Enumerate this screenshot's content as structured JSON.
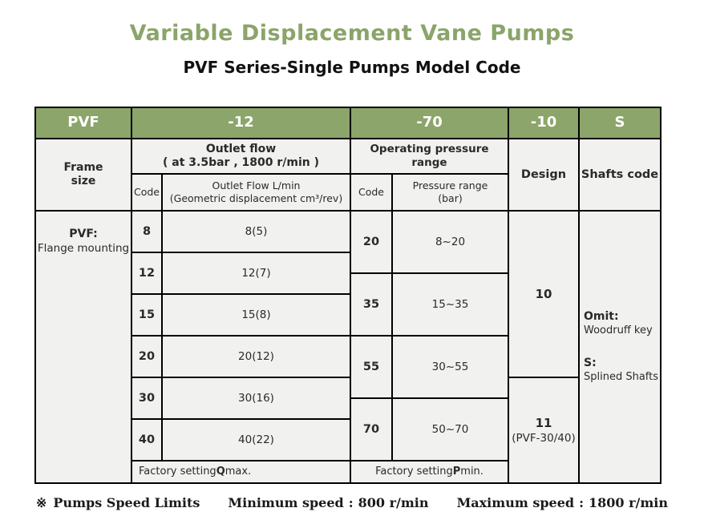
{
  "page": {
    "title": "Variable Displacement Vane Pumps",
    "subtitle": "PVF Series-Single Pumps Model Code"
  },
  "table": {
    "model_code": {
      "prefix": "PVF",
      "flow": "-12",
      "pressure": "-70",
      "design": "-10",
      "shaft": "S"
    },
    "frame": {
      "header_line1": "Frame",
      "header_line2": "size",
      "name": "PVF:",
      "desc": "Flange mounting"
    },
    "flow": {
      "title": "Outlet flow",
      "condition": "( at 3.5bar , 1800 r/min )",
      "code_header": "Code",
      "value_header_line1": "Outlet Flow L/min",
      "value_header_line2": "(Geometric displacement cm³/rev)",
      "rows": [
        {
          "code": "8",
          "value": "8(5)"
        },
        {
          "code": "12",
          "value": "12(7)"
        },
        {
          "code": "15",
          "value": "15(8)"
        },
        {
          "code": "20",
          "value": "20(12)"
        },
        {
          "code": "30",
          "value": "30(16)"
        },
        {
          "code": "40",
          "value": "40(22)"
        }
      ],
      "factory": {
        "prefix": "Factory setting ",
        "bold": "Q",
        "suffix": " max."
      }
    },
    "pressure": {
      "title": "Operating pressure range",
      "code_header": "Code",
      "value_header_line1": "Pressure range",
      "value_header_line2": "(bar)",
      "rows": [
        {
          "code": "20",
          "range": "8~20"
        },
        {
          "code": "35",
          "range": "15~35"
        },
        {
          "code": "55",
          "range": "30~55"
        },
        {
          "code": "70",
          "range": "50~70"
        }
      ],
      "factory": {
        "prefix": "Factory setting ",
        "bold": "P",
        "suffix": " min."
      }
    },
    "design": {
      "header": "Design",
      "options": [
        {
          "value": "10",
          "note": ""
        },
        {
          "value": "11",
          "note": "(PVF-30/40)"
        }
      ]
    },
    "shafts": {
      "header": "Shafts code",
      "options": [
        {
          "code": "Omit:",
          "desc": "Woodruff key"
        },
        {
          "code": "S:",
          "desc": "Splined Shafts"
        }
      ]
    }
  },
  "footer": {
    "mark": "※",
    "title": "Pumps Speed Limits",
    "min_label": "Minimum speed",
    "min_value": "800 r/min",
    "max_label": "Maximum speed",
    "max_value": "1800 r/min",
    "colon": ":"
  },
  "colors": {
    "header_green": "#8CA56A",
    "title_green": "#8BA46A",
    "cell_bg": "#F1F1EF",
    "border": "#000000"
  }
}
